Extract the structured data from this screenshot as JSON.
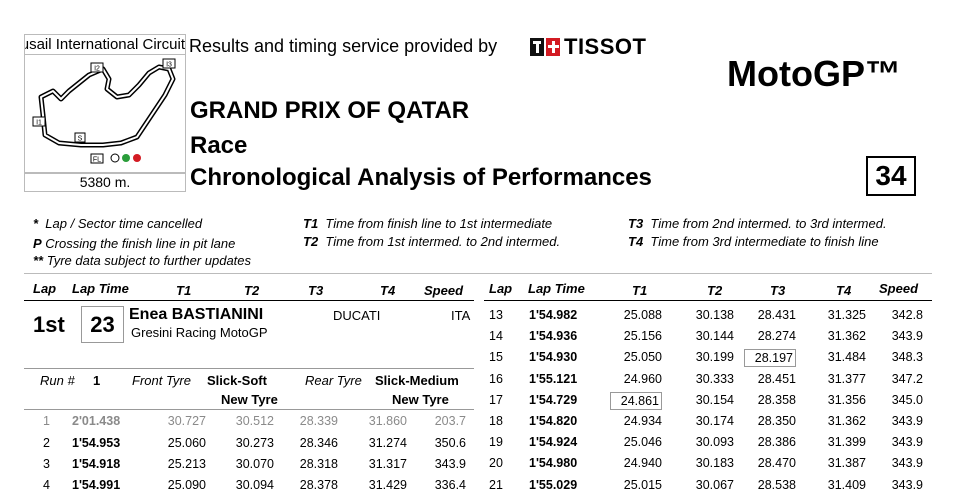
{
  "header": {
    "circuit_name": "Lusail International Circuit",
    "circuit_length": "5380 m.",
    "map_labels": {
      "i1": "I1",
      "i2": "I2",
      "i3": "I3",
      "s": "S",
      "fl": "FL"
    },
    "timing_text": "Results and timing service provided by",
    "tissot": "TISSOT",
    "brand": "MotoGP™",
    "event": "GRAND PRIX OF QATAR",
    "session": "Race",
    "doc_title": "Chronological Analysis of Performances",
    "page_number": "34",
    "colors": {
      "accent_red": "#d31b23"
    }
  },
  "legend": {
    "cancelled_sym": "*",
    "cancelled_text": "Lap / Sector time cancelled",
    "pit_sym": "P",
    "pit_text": "Crossing the finish line in pit lane",
    "tyre_sym": "**",
    "tyre_text": "Tyre data subject to further updates",
    "t1_sym": "T1",
    "t1_text": "Time from finish line to 1st intermediate",
    "t2_sym": "T2",
    "t2_text": "Time from 1st intermed. to 2nd intermed.",
    "t3_sym": "T3",
    "t3_text": "Time from 2nd intermed. to 3rd intermed.",
    "t4_sym": "T4",
    "t4_text": "Time from 3rd intermediate to finish line"
  },
  "columns": {
    "lap": "Lap",
    "lap_time": "Lap Time",
    "t1": "T1",
    "t2": "T2",
    "t3": "T3",
    "t4": "T4",
    "speed": "Speed"
  },
  "rider": {
    "position": "1st",
    "number": "23",
    "name": "Enea BASTIANINI",
    "team": "Gresini Racing MotoGP",
    "bike": "DUCATI",
    "nation": "ITA"
  },
  "run": {
    "run_label": "Run #",
    "run_number": "1",
    "front_label": "Front Tyre",
    "front_tyre": "Slick-Soft",
    "front_state": "New Tyre",
    "rear_label": "Rear Tyre",
    "rear_tyre": "Slick-Medium",
    "rear_state": "New Tyre"
  },
  "left_laps": [
    {
      "lap": "1",
      "time": "2'01.438",
      "t1": "30.727",
      "t2": "30.512",
      "t3": "28.339",
      "t4": "31.860",
      "speed": "203.7"
    },
    {
      "lap": "2",
      "time": "1'54.953",
      "t1": "25.060",
      "t2": "30.273",
      "t3": "28.346",
      "t4": "31.274",
      "speed": "350.6"
    },
    {
      "lap": "3",
      "time": "1'54.918",
      "t1": "25.213",
      "t2": "30.070",
      "t3": "28.318",
      "t4": "31.317",
      "speed": "343.9"
    },
    {
      "lap": "4",
      "time": "1'54.991",
      "t1": "25.090",
      "t2": "30.094",
      "t3": "28.378",
      "t4": "31.429",
      "speed": "336.4"
    }
  ],
  "right_laps": [
    {
      "lap": "13",
      "time": "1'54.982",
      "t1": "25.088",
      "t2": "30.138",
      "t3": "28.431",
      "t4": "31.325",
      "speed": "342.8"
    },
    {
      "lap": "14",
      "time": "1'54.936",
      "t1": "25.156",
      "t2": "30.144",
      "t3": "28.274",
      "t4": "31.362",
      "speed": "343.9"
    },
    {
      "lap": "15",
      "time": "1'54.930",
      "t1": "25.050",
      "t2": "30.199",
      "t3": "28.197",
      "t4": "31.484",
      "speed": "348.3"
    },
    {
      "lap": "16",
      "time": "1'55.121",
      "t1": "24.960",
      "t2": "30.333",
      "t3": "28.451",
      "t4": "31.377",
      "speed": "347.2"
    },
    {
      "lap": "17",
      "time": "1'54.729",
      "t1": "24.861",
      "t2": "30.154",
      "t3": "28.358",
      "t4": "31.356",
      "speed": "345.0"
    },
    {
      "lap": "18",
      "time": "1'54.820",
      "t1": "24.934",
      "t2": "30.174",
      "t3": "28.350",
      "t4": "31.362",
      "speed": "343.9"
    },
    {
      "lap": "19",
      "time": "1'54.924",
      "t1": "25.046",
      "t2": "30.093",
      "t3": "28.386",
      "t4": "31.399",
      "speed": "343.9"
    },
    {
      "lap": "20",
      "time": "1'54.980",
      "t1": "24.940",
      "t2": "30.183",
      "t3": "28.470",
      "t4": "31.387",
      "speed": "343.9"
    },
    {
      "lap": "21",
      "time": "1'55.029",
      "t1": "25.015",
      "t2": "30.067",
      "t3": "28.538",
      "t4": "31.409",
      "speed": "343.9"
    }
  ]
}
